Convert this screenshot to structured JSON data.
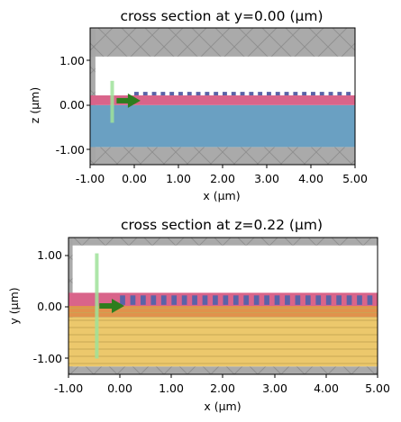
{
  "chart_data": [
    {
      "type": "cross_section",
      "title": "cross section at y=0.00 (μm)",
      "xlabel": "x (μm)",
      "ylabel": "z (μm)",
      "xlim": [
        -1.0,
        5.0
      ],
      "ylim": [
        -1.35,
        1.75
      ],
      "x_ticks": [
        -1,
        0,
        1,
        2,
        3,
        4,
        5
      ],
      "x_tick_labels": [
        "-1.00",
        "0.00",
        "1.00",
        "2.00",
        "3.00",
        "4.00",
        "5.00"
      ],
      "y_ticks": [
        -1,
        0,
        1
      ],
      "y_tick_labels": [
        "-1.00",
        "0.00",
        "1.00"
      ],
      "regions": [
        {
          "name": "pml-top",
          "y": [
            1.1,
            1.75
          ]
        },
        {
          "name": "pml-bottom",
          "y": [
            -1.35,
            -0.95
          ]
        },
        {
          "name": "pml-left",
          "x": [
            -1.0,
            -0.88
          ]
        },
        {
          "name": "substrate",
          "y": [
            -0.95,
            0.0
          ],
          "color": "#6aa0c2"
        },
        {
          "name": "waveguide-layer",
          "y": [
            0.0,
            0.22
          ],
          "color": "#d9648a"
        },
        {
          "name": "grating-teeth",
          "x_start": 0.0,
          "period": 0.2,
          "width": 0.1,
          "y": [
            0.22,
            0.3
          ],
          "color": "#5a63a8"
        }
      ],
      "source": {
        "x": -0.5,
        "y": [
          -0.4,
          0.55
        ],
        "color": "#9fe29a"
      },
      "arrow": {
        "x": [
          -0.4,
          0.1
        ],
        "y": 0.1,
        "color": "#2e7d1e"
      }
    },
    {
      "type": "cross_section",
      "title": "cross section at z=0.22 (μm)",
      "xlabel": "x (μm)",
      "ylabel": "y (μm)",
      "xlim": [
        -1.0,
        5.0
      ],
      "ylim": [
        -1.3,
        1.3
      ],
      "x_ticks": [
        -1,
        0,
        1,
        2,
        3,
        4,
        5
      ],
      "x_tick_labels": [
        "-1.00",
        "0.00",
        "1.00",
        "2.00",
        "3.00",
        "4.00",
        "5.00"
      ],
      "y_ticks": [
        -1,
        0,
        1
      ],
      "y_tick_labels": [
        "-1.00",
        "0.00",
        "1.00"
      ],
      "regions": [
        {
          "name": "pml-top",
          "y": [
            1.15,
            1.3
          ]
        },
        {
          "name": "pml-bottom",
          "y": [
            -1.3,
            -1.15
          ]
        },
        {
          "name": "pml-left",
          "x": [
            -1.0,
            -0.92
          ]
        },
        {
          "name": "ridge",
          "y": [
            0.0,
            0.25
          ],
          "color": "#d9648a"
        },
        {
          "name": "lower-band",
          "y": [
            -0.22,
            0.0
          ],
          "color": "#e1924c"
        },
        {
          "name": "slab",
          "y": [
            -1.15,
            -0.22
          ],
          "color": "#ecc86c"
        },
        {
          "name": "grating-teeth",
          "x_start": 0.0,
          "period": 0.2,
          "width": 0.1,
          "y": [
            0.02,
            0.2
          ],
          "color": "#5a63a8"
        }
      ],
      "source": {
        "x": -0.45,
        "y": [
          -1.0,
          1.0
        ],
        "color": "#9fe29a"
      },
      "arrow": {
        "x": [
          -0.4,
          0.05
        ],
        "y": 0.0,
        "color": "#2e7d1e"
      }
    }
  ]
}
